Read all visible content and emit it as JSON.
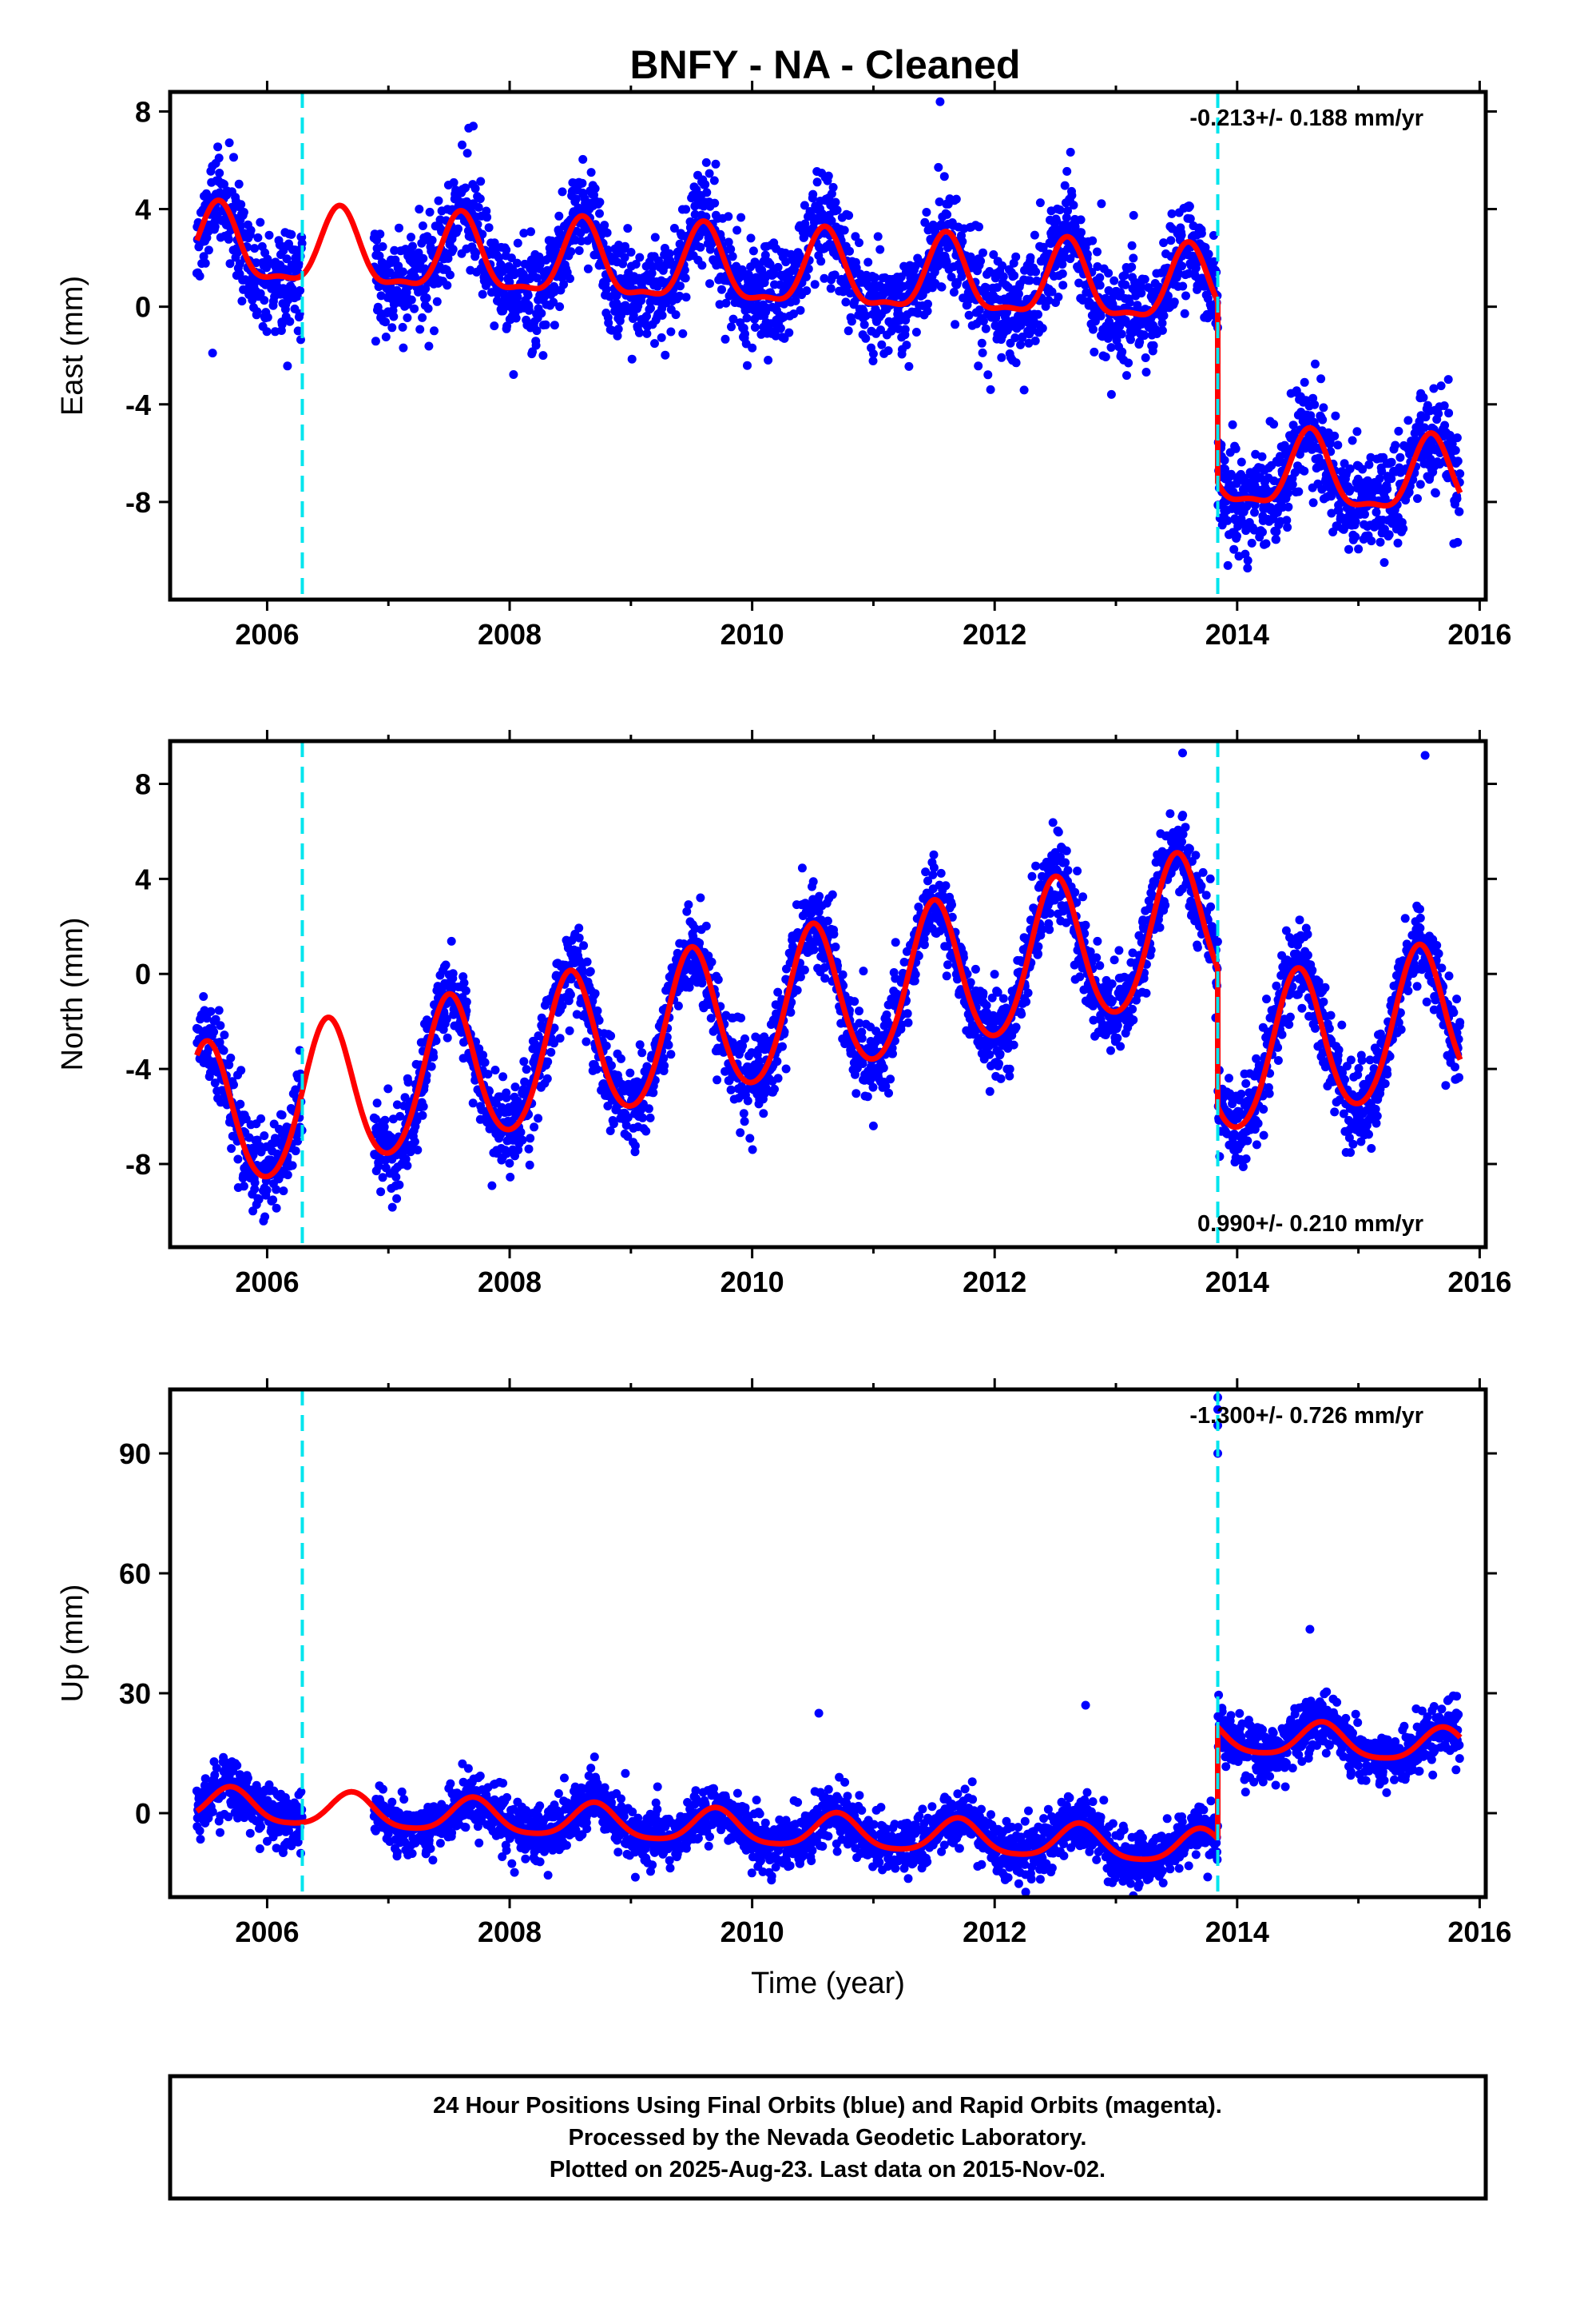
{
  "title": "BNFY  - NA - Cleaned",
  "footer": {
    "lines": [
      "24 Hour Positions Using Final Orbits (blue) and Rapid Orbits (magenta).",
      "Processed by the Nevada Geodetic Laboratory.",
      "Plotted on 2025-Aug-23. Last data on 2015-Nov-02."
    ]
  },
  "colors": {
    "points": "#0000ff",
    "model": "#ff0000",
    "event_lines": "#00e5ee",
    "frame": "#000000"
  },
  "chart_data": [
    {
      "type": "scatter",
      "ylabel": "East (mm)",
      "xlabel": "",
      "xlim": [
        2005.2,
        2016.05
      ],
      "ylim": [
        -12,
        8.8
      ],
      "xticks": [
        "2006",
        "2008",
        "2010",
        "2012",
        "2014",
        "2016"
      ],
      "yticks": [
        "8",
        "4",
        "0",
        "-4",
        "-8"
      ],
      "rate_label": "-0.213+/- 0.188 mm/yr",
      "rate_position": "top-right",
      "event_lines_x": [
        2006.29,
        2013.84
      ],
      "data_span": [
        2005.42,
        2015.84
      ],
      "data_gap": [
        2006.29,
        2006.88
      ],
      "model": {
        "offset": [
          2.4,
          -6.8
        ],
        "trend": -0.213,
        "annual_amp": 1.5,
        "annual_phase": 2005.6,
        "semiannual_amp": 0.5,
        "step_at": 2013.84
      },
      "scatter_sd": 1.3,
      "outliers": [
        [
          2011.55,
          8.4
        ],
        [
          2007.7,
          7.4
        ],
        [
          2005.55,
          -1.9
        ]
      ]
    },
    {
      "type": "scatter",
      "ylabel": "North (mm)",
      "xlabel": "",
      "xlim": [
        2005.2,
        2016.05
      ],
      "ylim": [
        -11.5,
        9.8
      ],
      "xticks": [
        "2006",
        "2008",
        "2010",
        "2012",
        "2014",
        "2016"
      ],
      "yticks": [
        "8",
        "4",
        "0",
        "-4",
        "-8"
      ],
      "rate_label": "0.990+/- 0.210 mm/yr",
      "rate_position": "bottom-right",
      "event_lines_x": [
        2006.29,
        2013.84
      ],
      "data_span": [
        2005.42,
        2015.84
      ],
      "data_gap": [
        2006.29,
        2006.88
      ],
      "model": {
        "offset": [
          -6.3,
          -3.8
        ],
        "trend": 0.99,
        "annual_amp": 3.1,
        "annual_phase": 2005.5,
        "semiannual_amp": 0.3,
        "step_at": 2013.84
      },
      "scatter_sd": 1.1,
      "outliers": [
        [
          2013.55,
          9.3
        ],
        [
          2015.55,
          9.2
        ]
      ]
    },
    {
      "type": "scatter",
      "ylabel": "Up (mm)",
      "xlabel": "Time (year)",
      "xlim": [
        2005.2,
        2016.05
      ],
      "ylim": [
        -21,
        106
      ],
      "xticks": [
        "2006",
        "2008",
        "2010",
        "2012",
        "2014",
        "2016"
      ],
      "yticks": [
        "90",
        "60",
        "30",
        "0"
      ],
      "rate_label": "-1.300+/- 0.726 mm/yr",
      "rate_position": "top-right",
      "event_lines_x": [
        2006.29,
        2013.84
      ],
      "data_span": [
        2005.42,
        2015.84
      ],
      "data_gap": [
        2006.29,
        2006.88
      ],
      "model": {
        "offset": [
          2.0,
          19.0
        ],
        "trend": -1.3,
        "annual_amp": 4.2,
        "annual_phase": 2005.7,
        "semiannual_amp": 0.8,
        "step_at": 2013.84
      },
      "scatter_sd": 4.2,
      "outliers": [
        [
          2013.84,
          104
        ],
        [
          2013.84,
          101
        ],
        [
          2013.84,
          97
        ],
        [
          2013.84,
          90
        ],
        [
          2014.6,
          46
        ],
        [
          2010.55,
          25
        ],
        [
          2012.75,
          27
        ]
      ]
    }
  ]
}
